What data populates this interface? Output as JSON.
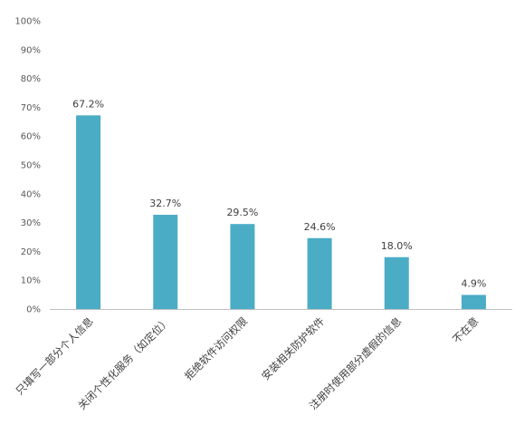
{
  "chart_data": {
    "type": "bar",
    "categories": [
      "只填写一部分个人信息",
      "关闭个性化服务（如定位）",
      "拒绝软件访问权限",
      "安装相关防护软件",
      "注册时使用部分虚假的信息",
      "不在意"
    ],
    "values": [
      67.2,
      32.7,
      29.5,
      24.6,
      18.0,
      4.9
    ],
    "value_labels": [
      "67.2%",
      "32.7%",
      "29.5%",
      "24.6%",
      "18.0%",
      "4.9%"
    ],
    "y_ticks": [
      "0%",
      "10%",
      "20%",
      "30%",
      "40%",
      "50%",
      "60%",
      "70%",
      "80%",
      "90%",
      "100%"
    ],
    "ylim": [
      0,
      100
    ],
    "grid": false,
    "title": "",
    "xlabel": "",
    "ylabel": "",
    "bar_color": "#4bacc6"
  }
}
